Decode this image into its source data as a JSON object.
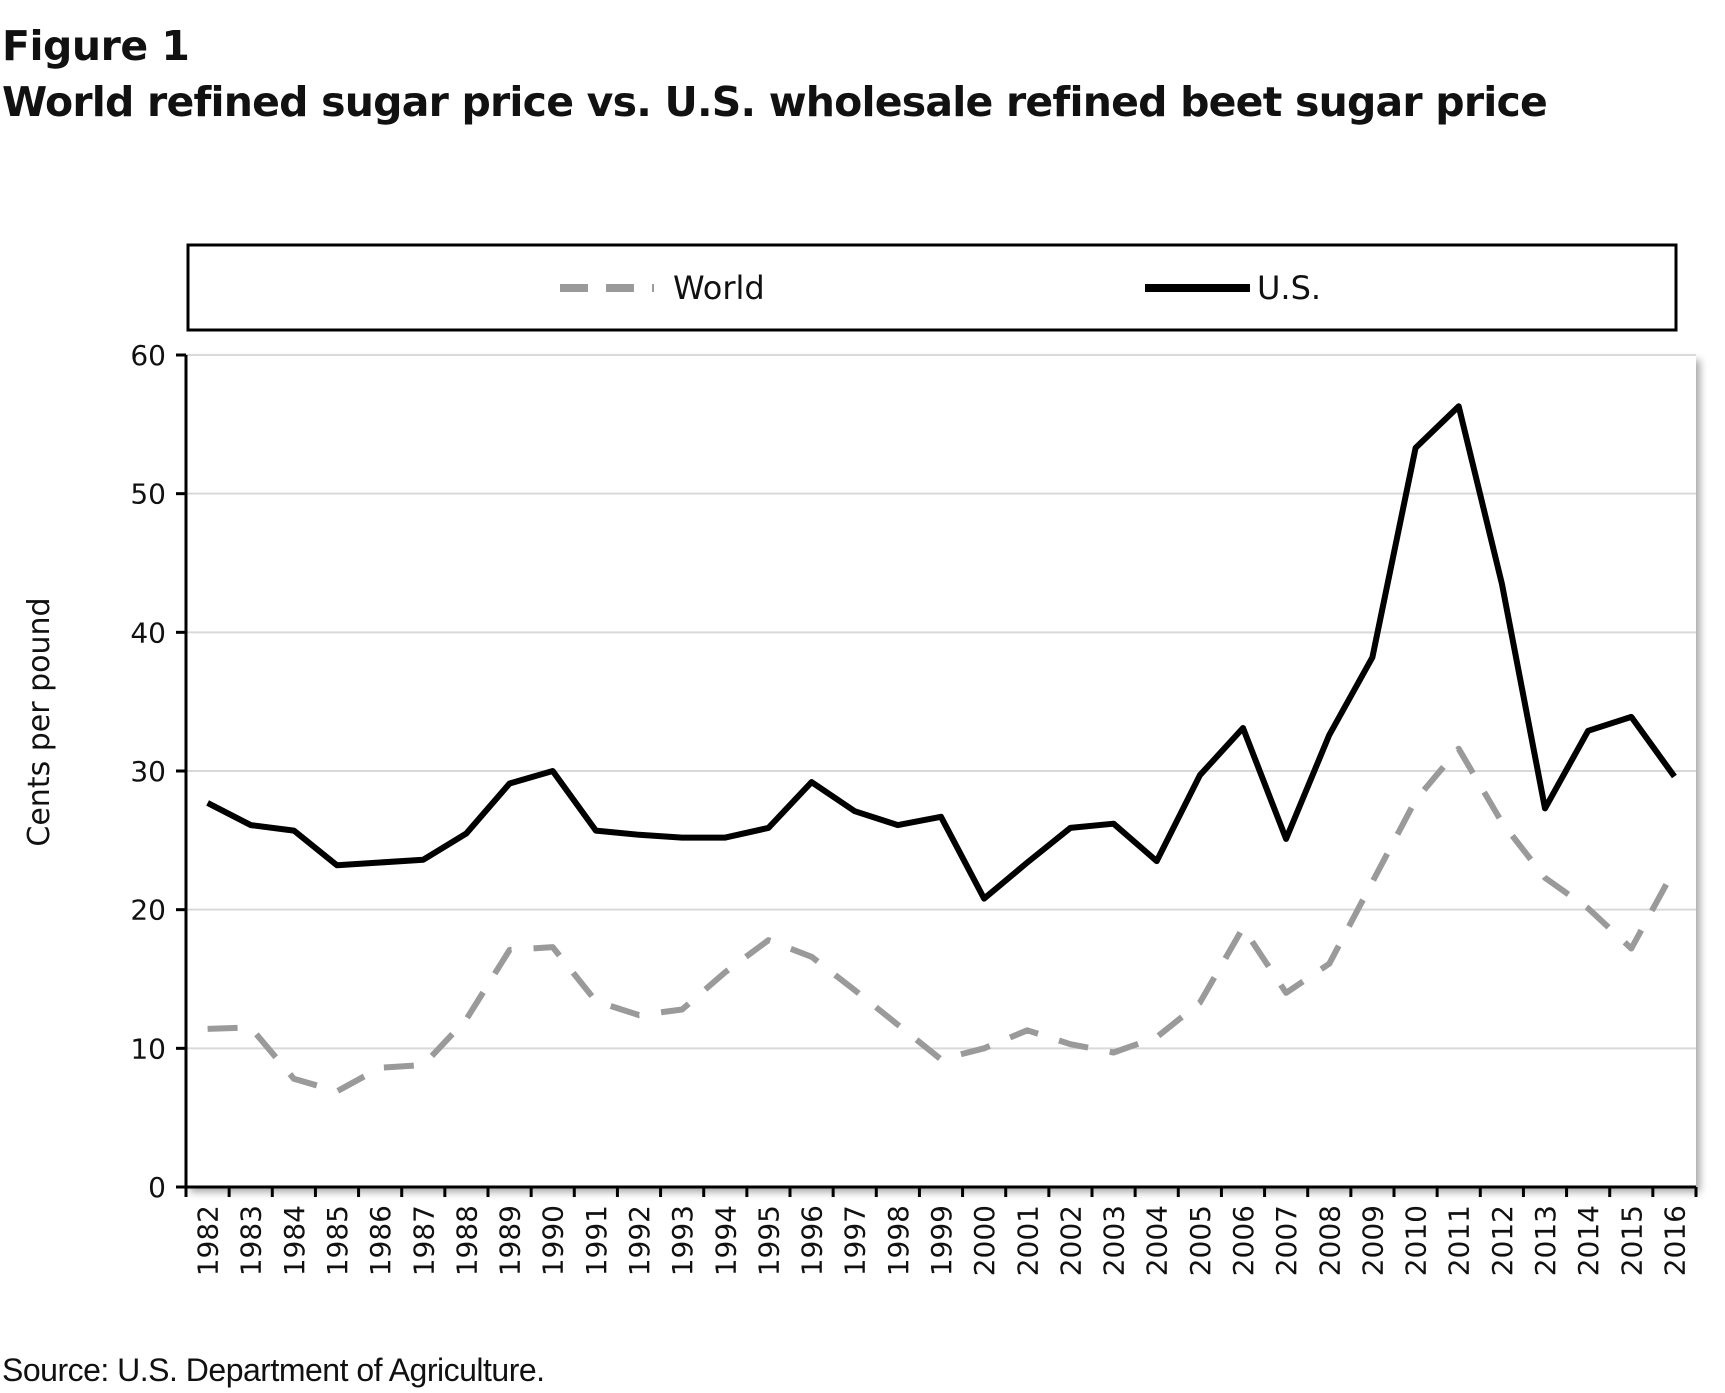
{
  "figure": {
    "label": "Figure 1",
    "title": "World refined sugar price vs. U.S. wholesale refined beet sugar price",
    "source": "Source: U.S. Department of Agriculture."
  },
  "chart_data": {
    "type": "line",
    "title": "World refined sugar price vs. U.S. wholesale refined beet sugar price",
    "xlabel": "",
    "ylabel": "Cents per pound",
    "ylim": [
      0,
      60
    ],
    "yticks": [
      0,
      10,
      20,
      30,
      40,
      50,
      60
    ],
    "grid": true,
    "legend_position": "top",
    "categories": [
      "1982",
      "1983",
      "1984",
      "1985",
      "1986",
      "1987",
      "1988",
      "1989",
      "1990",
      "1991",
      "1992",
      "1993",
      "1994",
      "1995",
      "1996",
      "1997",
      "1998",
      "1999",
      "2000",
      "2001",
      "2002",
      "2003",
      "2004",
      "2005",
      "2006",
      "2007",
      "2008",
      "2009",
      "2010",
      "2011",
      "2012",
      "2013",
      "2014",
      "2015",
      "2016"
    ],
    "series": [
      {
        "name": "World",
        "style": "dashed",
        "color": "#9a9a9a",
        "values": [
          11.4,
          11.5,
          7.8,
          6.9,
          8.6,
          8.8,
          12.1,
          17.1,
          17.3,
          13.4,
          12.4,
          12.8,
          15.5,
          17.8,
          16.6,
          14.2,
          11.7,
          9.2,
          10.0,
          11.3,
          10.3,
          9.7,
          10.8,
          13.3,
          18.7,
          14.0,
          16.1,
          22.0,
          27.9,
          31.6,
          26.3,
          22.3,
          20.1,
          17.2,
          22.9
        ]
      },
      {
        "name": "U.S.",
        "style": "solid",
        "color": "#000000",
        "values": [
          27.7,
          26.1,
          25.7,
          23.2,
          23.4,
          23.6,
          25.5,
          29.1,
          30.0,
          25.7,
          25.4,
          25.2,
          25.2,
          25.9,
          29.2,
          27.1,
          26.1,
          26.7,
          20.8,
          23.4,
          25.9,
          26.2,
          23.5,
          29.7,
          33.1,
          25.1,
          32.6,
          38.2,
          53.3,
          56.3,
          43.5,
          27.3,
          32.9,
          33.9,
          29.6
        ]
      }
    ]
  }
}
